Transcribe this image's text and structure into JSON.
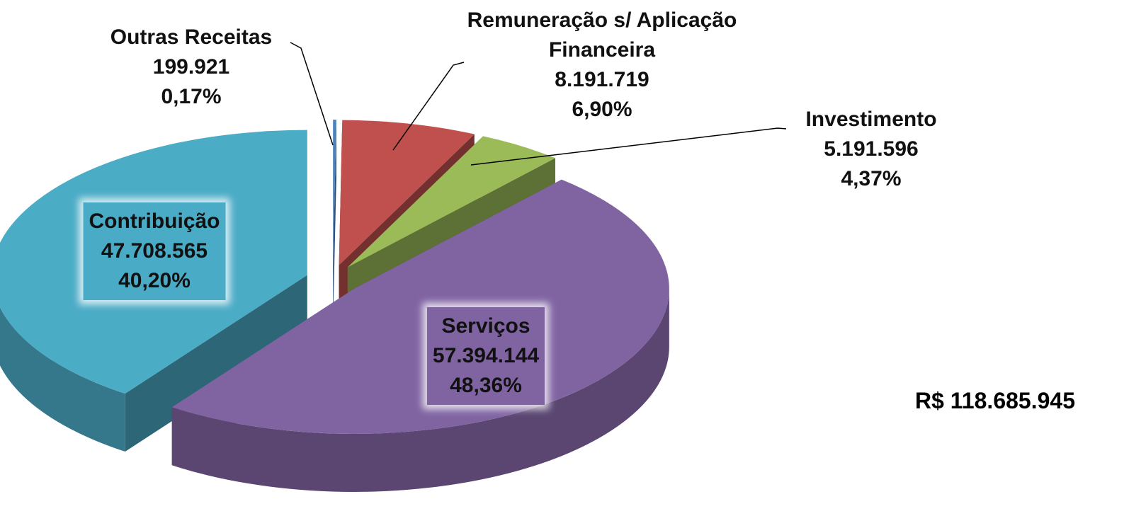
{
  "chart_data": {
    "type": "pie3d",
    "categories": [
      "Outras Receitas",
      "Remuneração s/ Aplicação Financeira",
      "Investimento",
      "Serviços",
      "Contribuição"
    ],
    "values": [
      199921,
      8191719,
      5191596,
      57394144,
      47708565
    ],
    "value_labels": [
      "199.921",
      "8.191.719",
      "5.191.596",
      "57.394.144",
      "47.708.565"
    ],
    "percent_labels": [
      "0,17%",
      "6,90%",
      "4,37%",
      "48,36%",
      "40,20%"
    ],
    "colors": [
      "#4f81bd",
      "#c0504d",
      "#9bbb59",
      "#8064a2",
      "#4bacc6"
    ],
    "total_label": "R$ 118.685.945"
  }
}
